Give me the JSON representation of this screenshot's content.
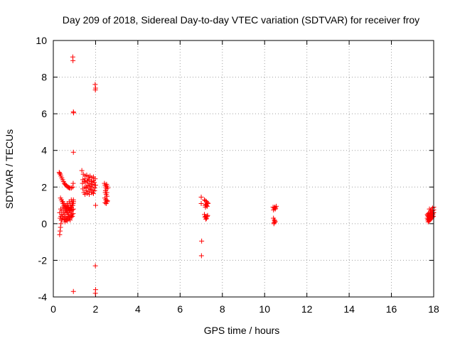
{
  "chart_data": {
    "type": "scatter",
    "title": "Day 209 of 2018, Sidereal Day-to-day VTEC variation (SDTVAR) for receiver froy",
    "xlabel": "GPS time / hours",
    "ylabel": "SDTVAR / TECUs",
    "xlim": [
      0,
      18
    ],
    "ylim": [
      -4,
      10
    ],
    "xticks": [
      0,
      2,
      4,
      6,
      8,
      10,
      12,
      14,
      16,
      18
    ],
    "yticks": [
      -4,
      -2,
      0,
      2,
      4,
      6,
      8,
      10
    ],
    "grid": true,
    "marker": "plus",
    "color": "#ff0000",
    "series": [
      {
        "name": "SDTVAR",
        "x": [
          0.92,
          0.93,
          0.95,
          0.96,
          0.95,
          0.94,
          1.98,
          2.0,
          1.99,
          2.0,
          1.99,
          0.95,
          2.0,
          1.99,
          0.28,
          0.3,
          0.33,
          0.36,
          0.4,
          0.44,
          0.48,
          0.52,
          0.56,
          0.6,
          0.64,
          0.68,
          0.72,
          0.76,
          0.8,
          0.86,
          0.92,
          0.3,
          0.32,
          0.34,
          0.36,
          0.38,
          0.3,
          0.35,
          0.4,
          0.45,
          0.5,
          0.55,
          0.6,
          0.65,
          0.7,
          0.75,
          0.8,
          0.85,
          0.9,
          0.95,
          0.32,
          0.36,
          0.4,
          0.44,
          0.48,
          0.52,
          0.56,
          0.6,
          0.64,
          0.68,
          0.72,
          0.76,
          0.8,
          0.84,
          0.88,
          0.92,
          0.96,
          0.34,
          0.38,
          0.42,
          0.46,
          0.5,
          0.54,
          0.58,
          0.62,
          0.66,
          0.7,
          0.74,
          0.78,
          0.82,
          0.86,
          0.9,
          0.94,
          0.4,
          0.46,
          0.52,
          0.58,
          0.64,
          0.7,
          0.76,
          0.82,
          0.88,
          0.94,
          0.45,
          0.5,
          0.55,
          0.6,
          0.65,
          0.7,
          0.75,
          0.8,
          0.85,
          0.9,
          0.95,
          0.55,
          0.6,
          0.65,
          0.7,
          0.75,
          0.8,
          0.85,
          0.9,
          1.35,
          1.42,
          1.5,
          1.58,
          1.66,
          1.74,
          1.82,
          1.9,
          1.98,
          1.38,
          1.46,
          1.54,
          1.62,
          1.7,
          1.78,
          1.86,
          1.94,
          2.0,
          1.4,
          1.48,
          1.56,
          1.64,
          1.72,
          1.8,
          1.88,
          1.96,
          1.45,
          1.55,
          1.65,
          1.75,
          1.85,
          1.95,
          1.5,
          1.6,
          1.7,
          1.8,
          1.9,
          1.4,
          1.5,
          1.6,
          1.7,
          1.8,
          1.9,
          1.55,
          1.65,
          1.75,
          1.85,
          1.95,
          2.42,
          2.45,
          2.48,
          2.5,
          2.52,
          2.55,
          2.58,
          2.46,
          2.5,
          2.54,
          2.44,
          2.48,
          2.52,
          2.56,
          2.45,
          2.5,
          2.55,
          2.47,
          2.53,
          2.5,
          7.0,
          7.02,
          7.01,
          7.0,
          7.15,
          7.2,
          7.25,
          7.3,
          7.18,
          7.22,
          7.28,
          7.32,
          7.2,
          7.25,
          7.15,
          7.2,
          7.25,
          7.3,
          7.18,
          7.22,
          7.28,
          10.4,
          10.45,
          10.5,
          10.55,
          10.42,
          10.48,
          10.52,
          10.42,
          10.46,
          10.5,
          10.44,
          10.48,
          10.45,
          17.7,
          17.74,
          17.78,
          17.82,
          17.86,
          17.9,
          17.94,
          17.98,
          17.72,
          17.76,
          17.8,
          17.84,
          17.88,
          17.92,
          17.96,
          18.0,
          17.7,
          17.75,
          17.8,
          17.85,
          17.9,
          17.95,
          18.0,
          17.74,
          17.78,
          17.82,
          17.86,
          17.9,
          17.94,
          17.98,
          17.8,
          17.85,
          17.9,
          17.95,
          18.0,
          17.72,
          17.8,
          17.88,
          17.96
        ],
        "y": [
          9.1,
          8.9,
          6.1,
          6.05,
          3.9,
          2.2,
          7.6,
          7.4,
          7.3,
          1.0,
          -2.3,
          -3.7,
          -3.6,
          -3.8,
          2.8,
          2.75,
          2.7,
          2.6,
          2.5,
          2.4,
          2.3,
          2.2,
          2.15,
          2.1,
          2.05,
          2.0,
          1.98,
          1.95,
          1.95,
          1.95,
          2.0,
          -0.6,
          -0.4,
          -0.2,
          0.0,
          0.2,
          0.6,
          0.8,
          0.7,
          0.9,
          0.8,
          1.0,
          0.9,
          1.1,
          1.0,
          1.2,
          1.1,
          1.3,
          1.2,
          1.3,
          0.3,
          0.4,
          0.5,
          0.4,
          0.6,
          0.5,
          0.7,
          0.6,
          0.8,
          0.7,
          0.9,
          0.8,
          1.0,
          0.9,
          1.1,
          1.0,
          1.2,
          1.4,
          1.3,
          1.2,
          1.1,
          1.0,
          0.9,
          0.8,
          0.7,
          0.6,
          0.5,
          0.6,
          0.7,
          0.8,
          0.9,
          1.0,
          1.1,
          0.2,
          0.3,
          0.25,
          0.35,
          0.3,
          0.4,
          0.35,
          0.45,
          0.5,
          0.55,
          1.2,
          1.1,
          1.0,
          0.95,
          0.9,
          0.85,
          0.8,
          0.75,
          0.7,
          0.75,
          0.8,
          0.1,
          0.2,
          0.15,
          0.25,
          0.3,
          0.2,
          0.35,
          0.4,
          2.9,
          2.7,
          2.6,
          2.65,
          2.55,
          2.6,
          2.5,
          2.55,
          2.45,
          2.2,
          2.3,
          2.25,
          2.35,
          2.2,
          2.3,
          2.15,
          2.25,
          2.1,
          1.9,
          2.0,
          1.95,
          2.05,
          1.9,
          2.0,
          1.85,
          1.95,
          1.7,
          1.8,
          1.75,
          1.85,
          1.7,
          1.8,
          1.6,
          1.65,
          1.6,
          1.7,
          1.65,
          2.4,
          2.45,
          2.35,
          2.4,
          2.3,
          2.35,
          2.0,
          2.1,
          2.05,
          2.15,
          2.1,
          2.2,
          2.1,
          2.0,
          1.9,
          2.15,
          2.05,
          1.95,
          1.7,
          1.6,
          1.5,
          1.4,
          1.3,
          1.2,
          1.25,
          1.15,
          1.1,
          1.2,
          1.8,
          1.7,
          1.3,
          1.45,
          -0.95,
          -1.75,
          1.1,
          1.3,
          1.25,
          1.2,
          1.15,
          1.0,
          1.05,
          0.95,
          1.1,
          0.9,
          1.0,
          0.5,
          0.4,
          0.3,
          0.45,
          0.35,
          0.25,
          0.4,
          0.9,
          0.85,
          0.8,
          0.95,
          0.75,
          0.9,
          0.85,
          0.3,
          0.2,
          0.1,
          0.0,
          0.15,
          0.05,
          0.3,
          0.4,
          0.35,
          0.45,
          0.5,
          0.4,
          0.55,
          0.6,
          0.2,
          0.25,
          0.3,
          0.35,
          0.4,
          0.45,
          0.5,
          0.6,
          0.5,
          0.55,
          0.6,
          0.55,
          0.65,
          0.7,
          0.75,
          0.1,
          0.15,
          0.2,
          0.25,
          0.3,
          0.35,
          0.4,
          0.8,
          0.7,
          0.75,
          0.85,
          0.9,
          0.45,
          0.5,
          0.55,
          0.6
        ]
      }
    ]
  }
}
